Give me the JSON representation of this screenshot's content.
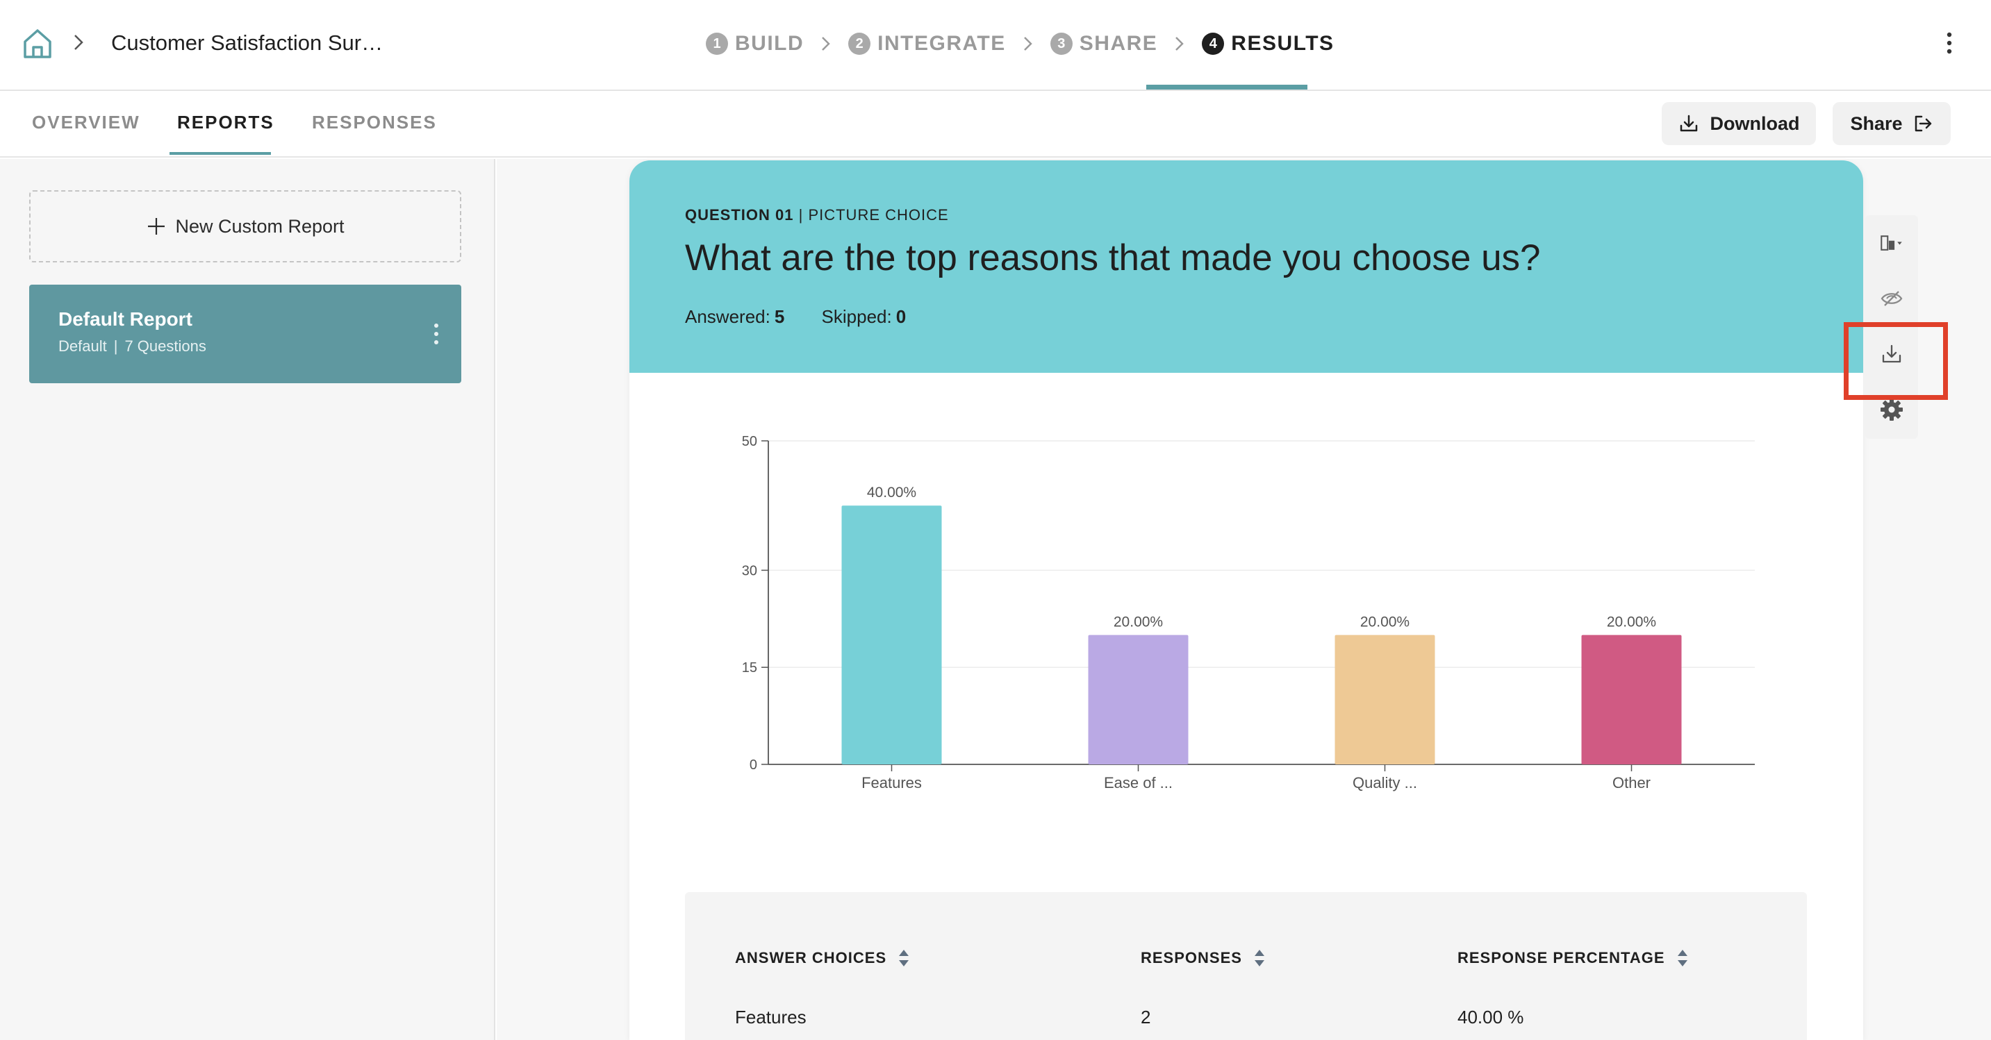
{
  "header": {
    "survey_title": "Customer Satisfaction Sur…",
    "steps": [
      {
        "num": "1",
        "label": "BUILD"
      },
      {
        "num": "2",
        "label": "INTEGRATE"
      },
      {
        "num": "3",
        "label": "SHARE"
      },
      {
        "num": "4",
        "label": "RESULTS"
      }
    ],
    "active_step": "RESULTS"
  },
  "subnav": {
    "tabs": [
      {
        "label": "OVERVIEW"
      },
      {
        "label": "REPORTS"
      },
      {
        "label": "RESPONSES"
      }
    ],
    "active_tab": "REPORTS",
    "download_label": "Download",
    "share_label": "Share"
  },
  "sidebar": {
    "new_report_label": "New Custom Report",
    "reports": [
      {
        "name": "Default Report",
        "type": "Default",
        "questions": "7 Questions"
      }
    ]
  },
  "question": {
    "number_label": "QUESTION 01",
    "type_label": "PICTURE CHOICE",
    "title": "What are the top reasons that made you choose us?",
    "answered_label": "Answered:",
    "answered_value": "5",
    "skipped_label": "Skipped:",
    "skipped_value": "0"
  },
  "chart_data": {
    "type": "bar",
    "categories": [
      "Features",
      "Ease of ...",
      "Quality ...",
      "Other"
    ],
    "values": [
      40,
      20,
      20,
      20
    ],
    "data_labels": [
      "40.00%",
      "20.00%",
      "20.00%",
      "20.00%"
    ],
    "bar_colors": [
      "#77d0d7",
      "#baa9e4",
      "#eec995",
      "#d05a83"
    ],
    "yticks": [
      0,
      15,
      30,
      50
    ],
    "ylim": [
      0,
      50
    ],
    "grid": true
  },
  "table": {
    "columns": [
      "ANSWER CHOICES",
      "RESPONSES",
      "RESPONSE PERCENTAGE"
    ],
    "rows": [
      {
        "choice": "Features",
        "responses": "2",
        "percentage": "40.00 %"
      }
    ]
  },
  "side_tools": [
    "chart-type-icon",
    "hide-icon",
    "download-icon",
    "settings-icon"
  ],
  "colors": {
    "accent": "#5b9ea4",
    "header_bg": "#77d0d7",
    "report_card": "#5f98a0",
    "highlight": "#e0402a"
  }
}
